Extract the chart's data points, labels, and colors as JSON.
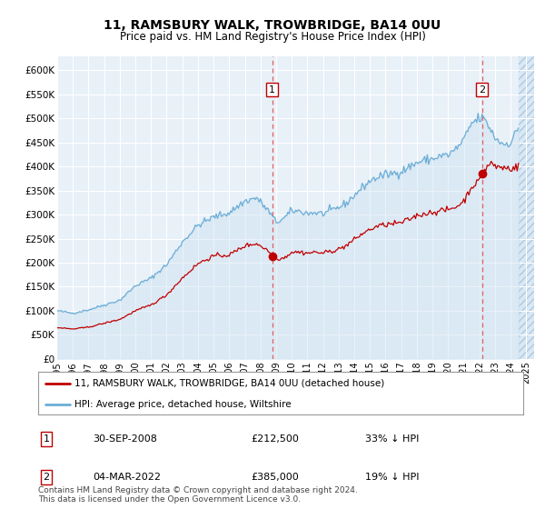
{
  "title": "11, RAMSBURY WALK, TROWBRIDGE, BA14 0UU",
  "subtitle": "Price paid vs. HM Land Registry's House Price Index (HPI)",
  "ylabel_ticks": [
    "£0",
    "£50K",
    "£100K",
    "£150K",
    "£200K",
    "£250K",
    "£300K",
    "£350K",
    "£400K",
    "£450K",
    "£500K",
    "£550K",
    "£600K"
  ],
  "ylim": [
    0,
    630000
  ],
  "ytick_vals": [
    0,
    50000,
    100000,
    150000,
    200000,
    250000,
    300000,
    350000,
    400000,
    450000,
    500000,
    550000,
    600000
  ],
  "background_color": "#e8f0f8",
  "plot_bg_color": "#e8f0f8",
  "grid_color": "#ffffff",
  "hpi_color": "#6baed6",
  "hpi_fill_color": "#c8dff0",
  "price_color": "#c00000",
  "legend_label_price": "11, RAMSBURY WALK, TROWBRIDGE, BA14 0UU (detached house)",
  "legend_label_hpi": "HPI: Average price, detached house, Wiltshire",
  "transaction1_date": "30-SEP-2008",
  "transaction1_price": "£212,500",
  "transaction1_pct": "33% ↓ HPI",
  "transaction2_date": "04-MAR-2022",
  "transaction2_price": "£385,000",
  "transaction2_pct": "19% ↓ HPI",
  "footer": "Contains HM Land Registry data © Crown copyright and database right 2024.\nThis data is licensed under the Open Government Licence v3.0.",
  "transaction1_x": 2008.75,
  "transaction1_y": 212500,
  "transaction2_x": 2022.17,
  "transaction2_y": 385000,
  "vline1_x": 2008.75,
  "vline2_x": 2022.17,
  "xlim_start": 1995.0,
  "xlim_end": 2025.5,
  "data_end": 2024.5,
  "xtick_years": [
    1995,
    1996,
    1997,
    1998,
    1999,
    2000,
    2001,
    2002,
    2003,
    2004,
    2005,
    2006,
    2007,
    2008,
    2009,
    2010,
    2011,
    2012,
    2013,
    2014,
    2015,
    2016,
    2017,
    2018,
    2019,
    2020,
    2021,
    2022,
    2023,
    2024,
    2025
  ]
}
